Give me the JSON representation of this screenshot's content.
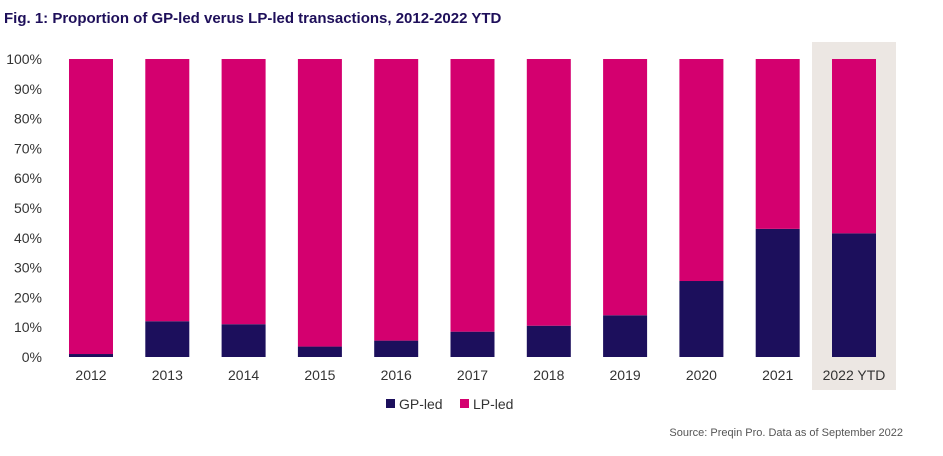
{
  "colors": {
    "gp_led": "#1c0f5c",
    "lp_led": "#d4006f",
    "ytd_highlight": "#ece7e3",
    "title": "#1e0f5a"
  },
  "chart_data": {
    "type": "bar",
    "stacked": true,
    "title": "Fig. 1: Proportion of GP-led verus LP-led transactions, 2012-2022 YTD",
    "categories": [
      "2012",
      "2013",
      "2014",
      "2015",
      "2016",
      "2017",
      "2018",
      "2019",
      "2020",
      "2021",
      "2022 YTD"
    ],
    "series": [
      {
        "name": "GP-led",
        "values": [
          1,
          12,
          11,
          3.5,
          5.5,
          8.5,
          10.5,
          14,
          25.5,
          43,
          41.5
        ]
      },
      {
        "name": "LP-led",
        "values": [
          99,
          88,
          89,
          96.5,
          94.5,
          91.5,
          89.5,
          86,
          74.5,
          57,
          58.5
        ]
      }
    ],
    "ylim": [
      0,
      100
    ],
    "yticks": [
      "0%",
      "10%",
      "20%",
      "30%",
      "40%",
      "50%",
      "60%",
      "70%",
      "80%",
      "90%",
      "100%"
    ],
    "highlighted_category": "2022 YTD",
    "legend_position": "bottom",
    "grid": false
  },
  "source": "Source: Preqin Pro. Data as of September 2022"
}
